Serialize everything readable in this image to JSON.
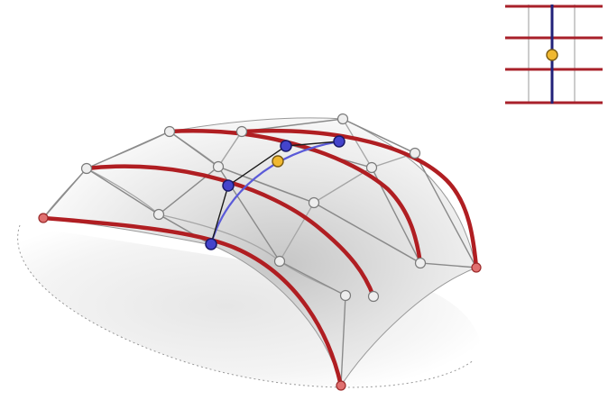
{
  "figure": {
    "kind": "surface-isocurve-editing-illustration",
    "colors": {
      "background": "#ffffff",
      "surface_light": "#f7f7f7",
      "surface_shade": "#c9c9c9",
      "shadow": "#d8d8d8",
      "control_net": "#8a8a8a",
      "control_point_fill": "#eeeeee",
      "control_point_stroke": "#7a7a7a",
      "boundary_curves": "#b01e22",
      "boundary_point_fill": "#e07070",
      "edited_isocurve": "#5a5ad8",
      "edit_handle_fill": "#4444cc",
      "edit_handle_stroke": "#1a1a6a",
      "edit_polygon": "#1a1a1a",
      "active_point_fill": "#f0b830",
      "active_point_stroke": "#7a5a10",
      "inset_grid": "#a8202a",
      "inset_grid_minor": "#bbbbbb",
      "inset_param_line": "#22227a"
    },
    "icons": {
      "surface": "nurbs-surface",
      "control_net": "control-net",
      "control_point": "control-point-icon",
      "edit_handle": "edit-handle-icon",
      "active_point": "active-point-icon",
      "inset": "parameter-domain-icon"
    },
    "inset": {
      "description_visible": false,
      "rows": 4,
      "columns": 2,
      "active_parameter": {
        "u": 0.5,
        "v": 0.55
      }
    }
  }
}
